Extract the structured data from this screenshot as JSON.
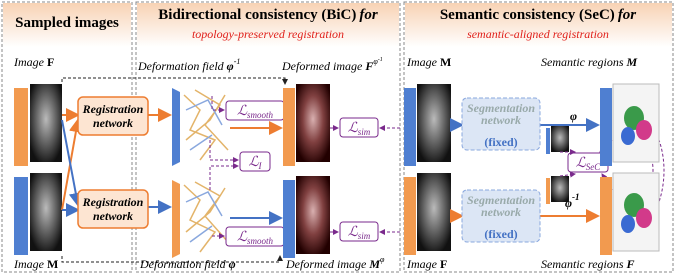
{
  "panels": [
    {
      "title": "Sampled images"
    },
    {
      "title": "Bidirectional consistency (BiC)",
      "connector": "for",
      "subtitle": "topology-preserved registration"
    },
    {
      "title": "Semantic consistency (SeC)",
      "connector": "for",
      "subtitle": "semantic-aligned registration"
    }
  ],
  "sampled": {
    "image_f": {
      "word": "Image",
      "symbol": "F"
    },
    "image_m": {
      "word": "Image",
      "symbol": "M"
    }
  },
  "bic": {
    "registration_top": [
      "Registration",
      "network"
    ],
    "registration_bottom": [
      "Registration",
      "network"
    ],
    "field_top": {
      "text": "Deformation field",
      "symbol": "φ",
      "sup": "-1"
    },
    "field_bottom": {
      "text": "Deformation field",
      "symbol": "φ"
    },
    "deformed_top": {
      "text": "Deformed image",
      "symbol": "F",
      "sup": "φ",
      "supsup": "-1"
    },
    "deformed_bottom": {
      "text": "Deformed image",
      "symbol": "M",
      "sup": "φ"
    },
    "smooth_top": {
      "symbol": "ℒ",
      "sub": "smooth"
    },
    "smooth_bottom": {
      "symbol": "ℒ",
      "sub": "smooth"
    },
    "loss_i": {
      "symbol": "ℒ",
      "sub": "I"
    },
    "sim_top": {
      "symbol": "ℒ",
      "sub": "sim"
    },
    "sim_bottom": {
      "symbol": "ℒ",
      "sub": "sim"
    }
  },
  "sec": {
    "image_m": {
      "word": "Image",
      "symbol": "M"
    },
    "image_f": {
      "word": "Image",
      "symbol": "F"
    },
    "segmentation_top": {
      "lines": [
        "Segmentation",
        "network"
      ],
      "note": "(fixed)"
    },
    "segmentation_bottom": {
      "lines": [
        "Segmentation",
        "network"
      ],
      "note": "(fixed)"
    },
    "phi": {
      "symbol": "φ"
    },
    "phi_inv": {
      "symbol": "φ",
      "sup": "-1"
    },
    "loss_sec": {
      "symbol": "ℒ",
      "sub": "SeC"
    },
    "regions_m": {
      "text": "Semantic regions",
      "symbol": "M"
    },
    "regions_f": {
      "text": "Semantic regions",
      "symbol": "F"
    }
  }
}
